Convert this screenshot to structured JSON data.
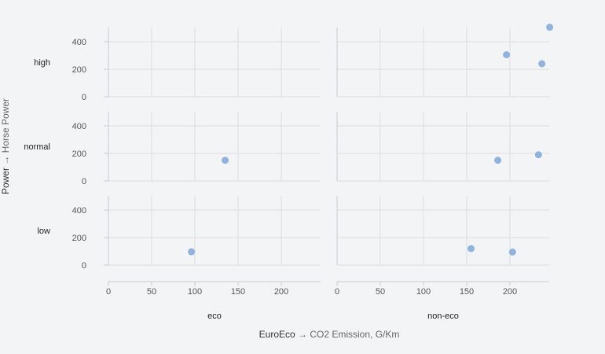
{
  "chart_data": {
    "type": "scatter",
    "title": "",
    "xlabel": {
      "field": "EuroEco",
      "arrow": "→",
      "unit": "CO2 Emission, G/Km"
    },
    "ylabel": {
      "field": "Power",
      "arrow": "→",
      "unit": "Horse Power"
    },
    "columns": [
      "eco",
      "non-eco"
    ],
    "rows": [
      "high",
      "normal",
      "low"
    ],
    "xlim": [
      0,
      250
    ],
    "ylim": [
      0,
      500
    ],
    "xticks": [
      0,
      50,
      100,
      150,
      200
    ],
    "yticks": [
      0,
      200,
      400
    ],
    "grid": true,
    "point_color": "#8fb3dd",
    "points": [
      {
        "row": "high",
        "col": "non-eco",
        "x": 196,
        "y": 305
      },
      {
        "row": "high",
        "col": "non-eco",
        "x": 237,
        "y": 240
      },
      {
        "row": "high",
        "col": "non-eco",
        "x": 246,
        "y": 505
      },
      {
        "row": "normal",
        "col": "eco",
        "x": 135,
        "y": 150
      },
      {
        "row": "normal",
        "col": "non-eco",
        "x": 186,
        "y": 150
      },
      {
        "row": "normal",
        "col": "non-eco",
        "x": 233,
        "y": 190
      },
      {
        "row": "low",
        "col": "eco",
        "x": 96,
        "y": 97
      },
      {
        "row": "low",
        "col": "non-eco",
        "x": 155,
        "y": 120
      },
      {
        "row": "low",
        "col": "non-eco",
        "x": 203,
        "y": 95
      }
    ]
  }
}
